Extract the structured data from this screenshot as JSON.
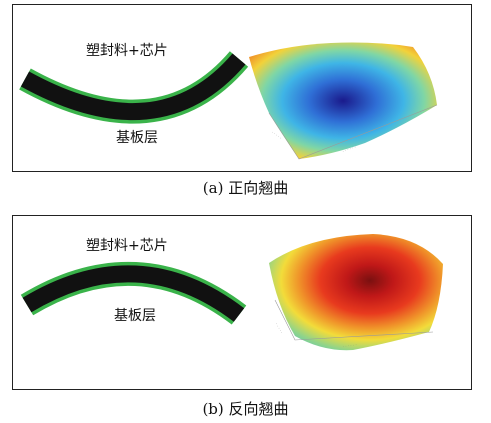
{
  "panels": [
    {
      "layer_top_label": "塑封料+芯片",
      "layer_bottom_label": "基板层",
      "caption": "(a) 正向翘曲",
      "top_layer_color": "#111111",
      "bottom_layer_color": "#3ab34a",
      "surface_center_color": "#1a1a8c",
      "surface_edge_color": "#e23a1e"
    },
    {
      "layer_top_label": "塑封料+芯片",
      "layer_bottom_label": "基板层",
      "caption": "(b) 反向翘曲",
      "top_layer_color": "#111111",
      "bottom_layer_color": "#3ab34a",
      "surface_center_color": "#7a1010",
      "surface_edge_color": "#39b9d8"
    }
  ]
}
